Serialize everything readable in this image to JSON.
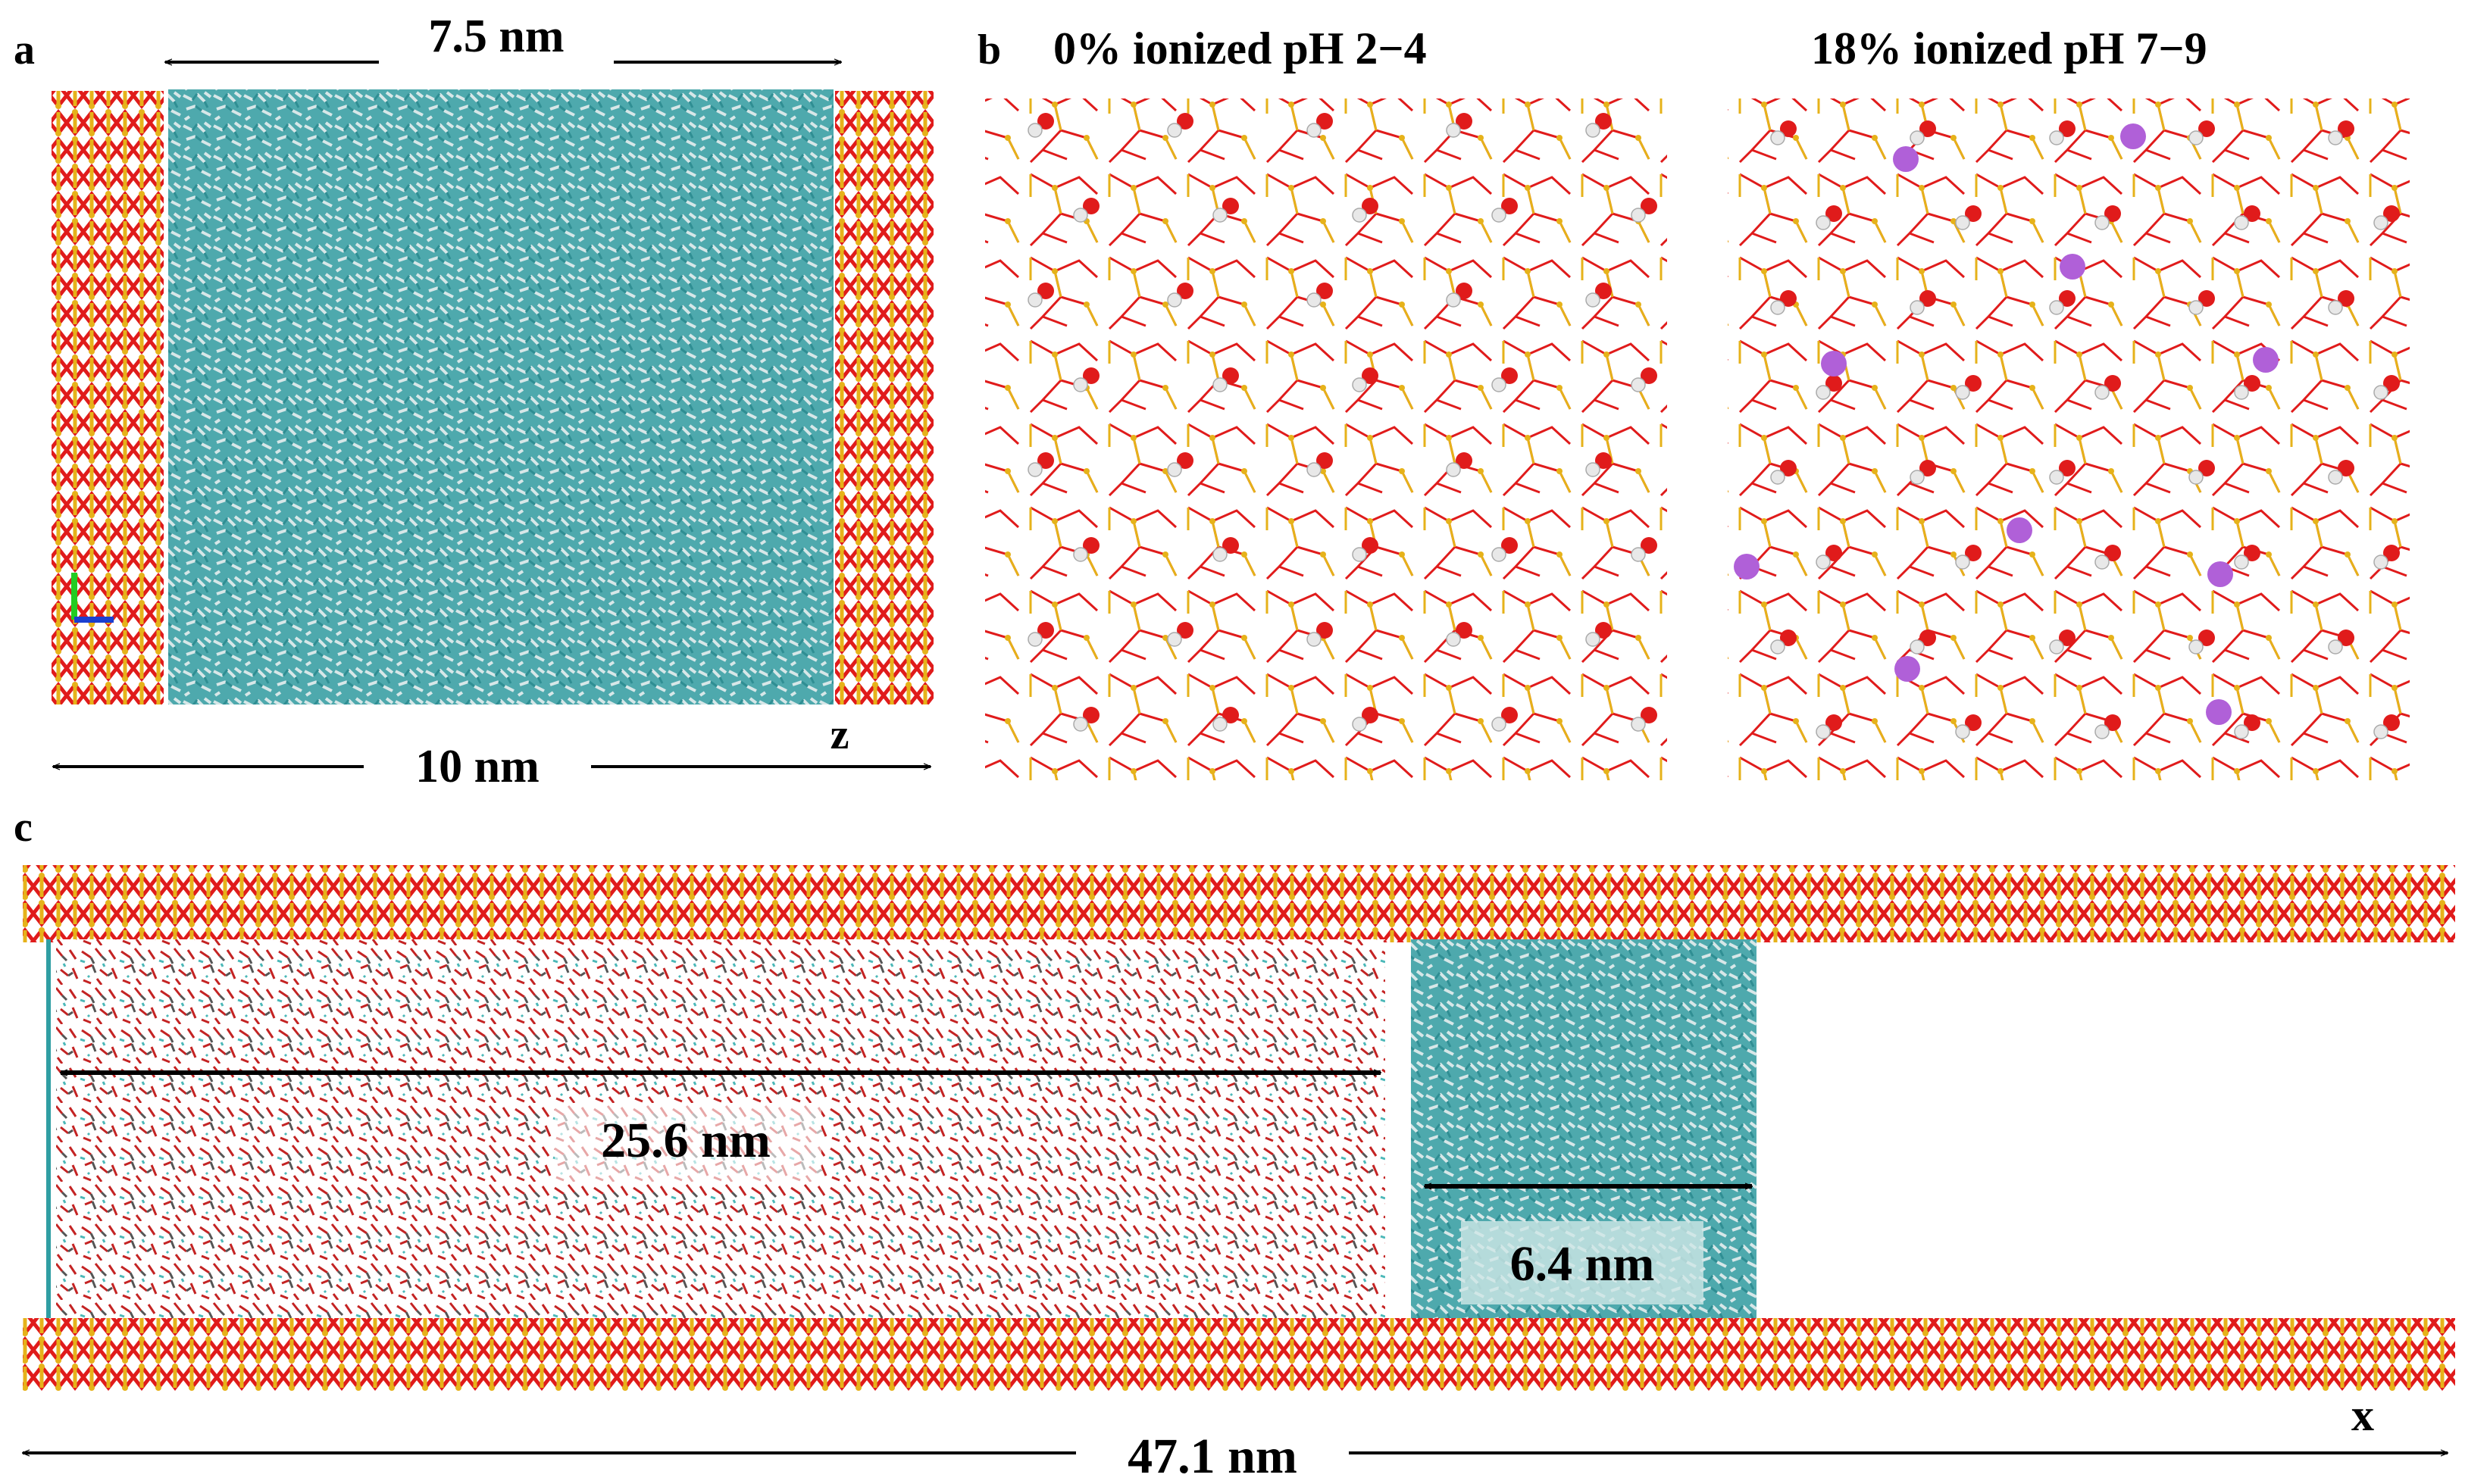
{
  "panels": {
    "a": {
      "letter": "a",
      "water_width": "7.5 nm",
      "box_width": "10 nm",
      "axis": "z"
    },
    "b": {
      "letter": "b",
      "left_title": "0% ionized pH 2−4",
      "right_title": "18% ionized pH 7−9"
    },
    "c": {
      "letter": "c",
      "nonpolar_width": "25.6 nm",
      "water_width": "6.4 nm",
      "box_length": "47.1 nm",
      "axis": "x"
    }
  },
  "colors": {
    "silicon": "#e6b21a",
    "oxygen": "#e01b1b",
    "hydrogen": "#e8e8e8",
    "water_carbon": "#4bb8b8",
    "cation": "#b060d8",
    "text": "#000000"
  }
}
